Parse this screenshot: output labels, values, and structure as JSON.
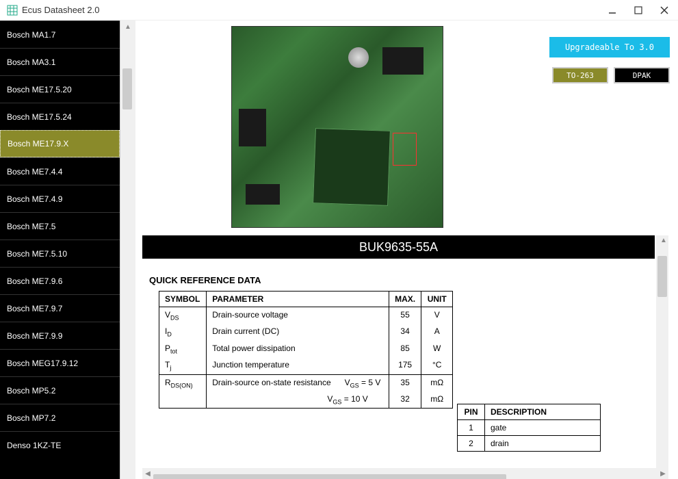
{
  "app": {
    "title": "Ecus Datasheet 2.0"
  },
  "sidebar": {
    "items": [
      {
        "label": "Bosch MA1.7",
        "selected": false
      },
      {
        "label": "Bosch MA3.1",
        "selected": false
      },
      {
        "label": "Bosch ME17.5.20",
        "selected": false
      },
      {
        "label": "Bosch ME17.5.24",
        "selected": false
      },
      {
        "label": "Bosch ME17.9.X",
        "selected": true
      },
      {
        "label": "Bosch ME7.4.4",
        "selected": false
      },
      {
        "label": "Bosch ME7.4.9",
        "selected": false
      },
      {
        "label": "Bosch ME7.5",
        "selected": false
      },
      {
        "label": "Bosch ME7.5.10",
        "selected": false
      },
      {
        "label": "Bosch ME7.9.6",
        "selected": false
      },
      {
        "label": "Bosch ME7.9.7",
        "selected": false
      },
      {
        "label": "Bosch ME7.9.9",
        "selected": false
      },
      {
        "label": "Bosch MEG17.9.12",
        "selected": false
      },
      {
        "label": "Bosch MP5.2",
        "selected": false
      },
      {
        "label": "Bosch MP7.2",
        "selected": false
      },
      {
        "label": "Denso 1KZ-TE",
        "selected": false
      }
    ]
  },
  "buttons": {
    "upgrade": "Upgradeable To 3.0",
    "pkg1": "TO-263",
    "pkg2": "DPAK"
  },
  "part": {
    "header": "BUK9635-55A"
  },
  "datasheet": {
    "section_title": "QUICK REFERENCE DATA",
    "columns": {
      "symbol": "SYMBOL",
      "parameter": "PARAMETER",
      "max": "MAX.",
      "unit": "UNIT"
    },
    "rows": [
      {
        "sym": "V",
        "sub": "DS",
        "param": "Drain-source voltage",
        "max": "55",
        "unit": "V"
      },
      {
        "sym": "I",
        "sub": "D",
        "param": "Drain current (DC)",
        "max": "34",
        "unit": "A"
      },
      {
        "sym": "P",
        "sub": "tot",
        "param": "Total power dissipation",
        "max": "85",
        "unit": "W"
      },
      {
        "sym": "T",
        "sub": "j",
        "param": "Junction temperature",
        "max": "175",
        "unit": "°C"
      }
    ],
    "rds_symbol": {
      "sym": "R",
      "sub": "DS(ON)"
    },
    "rds_param_label": "Drain-source on-state resistance",
    "rds_cond_sym": "V",
    "rds_cond_sub": "GS",
    "rds": [
      {
        "cond": "= 5 V",
        "max": "35",
        "unit": "mΩ"
      },
      {
        "cond": "= 10 V",
        "max": "32",
        "unit": "mΩ"
      }
    ]
  },
  "pins": {
    "columns": {
      "pin": "PIN",
      "desc": "DESCRIPTION"
    },
    "rows": [
      {
        "pin": "1",
        "desc": "gate"
      },
      {
        "pin": "2",
        "desc": "drain"
      }
    ]
  },
  "colors": {
    "accent_cyan": "#1bbce8",
    "accent_olive": "#8a8a2a",
    "black": "#000000"
  }
}
